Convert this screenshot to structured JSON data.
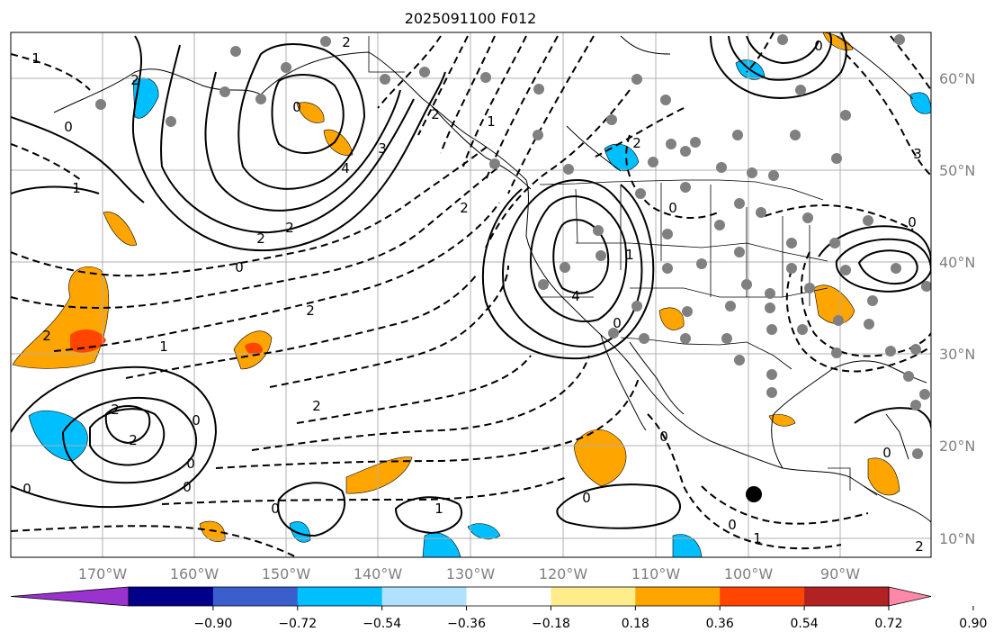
{
  "title": "2025091100 F012",
  "lon_labels": [
    "170°W",
    "160°W",
    "150°W",
    "140°W",
    "130°W",
    "120°W",
    "110°W",
    "100°W",
    "90°W"
  ],
  "lat_labels": [
    "60°N",
    "50°N",
    "40°N",
    "30°N",
    "20°N",
    "10°N"
  ],
  "colorbar": {
    "colors": [
      "#9a32cd",
      "#00008b",
      "#3a5fcd",
      "#00bfff",
      "#b0e2ff",
      "#ffffff",
      "#ffec8b",
      "#ffa500",
      "#ff4500",
      "#b22222",
      "#ff88aa"
    ],
    "labels": [
      "−0.90",
      "−0.72",
      "−0.54",
      "−0.36",
      "−0.18",
      "0.18",
      "0.36",
      "0.54",
      "0.72",
      "0.90"
    ]
  },
  "contour_labels": [
    "2",
    "2",
    "0",
    "1",
    "0",
    "4",
    "3",
    "2",
    "2",
    "0",
    "2",
    "2",
    "1",
    "0",
    "0",
    "2",
    "2",
    "0",
    "4",
    "0",
    "2",
    "1",
    "2",
    "2",
    "1",
    "0",
    "1",
    "0",
    "0",
    "0",
    "2",
    "1",
    "0",
    "3",
    "0",
    "0",
    "2",
    "0",
    "1",
    "0"
  ]
}
